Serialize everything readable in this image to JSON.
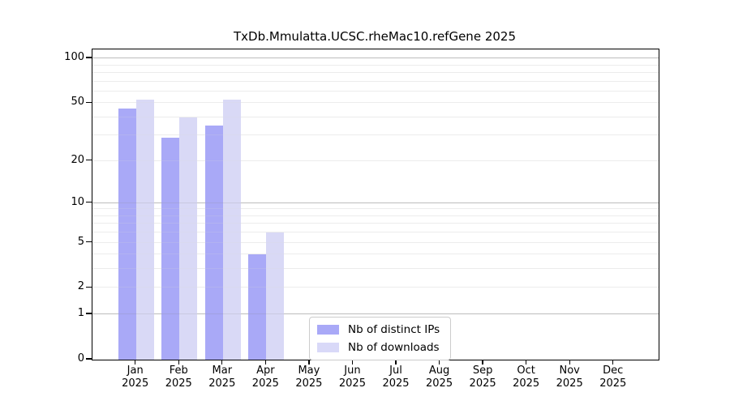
{
  "title": "TxDb.Mmulatta.UCSC.rheMac10.refGene 2025",
  "chart_data": {
    "type": "bar",
    "title": "TxDb.Mmulatta.UCSC.rheMac10.refGene 2025",
    "categories": [
      "Jan 2025",
      "Feb 2025",
      "Mar 2025",
      "Apr 2025",
      "May 2025",
      "Jun 2025",
      "Jul 2025",
      "Aug 2025",
      "Sep 2025",
      "Oct 2025",
      "Nov 2025",
      "Dec 2025"
    ],
    "series": [
      {
        "name": "Nb of distinct IPs",
        "color": "#a9a9f7",
        "values": [
          46,
          29,
          35,
          4,
          0,
          0,
          0,
          0,
          0,
          0,
          0,
          0
        ]
      },
      {
        "name": "Nb of downloads",
        "color": "#d9d9f8",
        "values": [
          53,
          40,
          53,
          6,
          0,
          0,
          0,
          0,
          0,
          0,
          0,
          0
        ]
      }
    ],
    "xlabel": "",
    "ylabel": "",
    "yscale": "log1p",
    "ylim": [
      0,
      115
    ],
    "yticks": [
      0,
      1,
      2,
      5,
      10,
      20,
      50,
      100
    ],
    "major_gridlines": [
      1,
      10,
      100
    ],
    "minor_gridlines": [
      2,
      3,
      4,
      5,
      6,
      7,
      8,
      9,
      20,
      30,
      40,
      50,
      60,
      70,
      80,
      90
    ],
    "grid": true,
    "legend_position": "inside-bottom-center"
  },
  "colors": {
    "bar_ips_solid": "#a9a9f7",
    "bar_ips_rgba": "rgba(148,148,245,0.8)",
    "bar_downloads_solid": "#d9d9f8",
    "bar_downloads_rgba": "rgba(208,208,244,0.8)",
    "grid_major": "#bdbdbd",
    "grid_minor": "#ececec",
    "axis": "#000000",
    "legend_border": "#cccccc"
  }
}
